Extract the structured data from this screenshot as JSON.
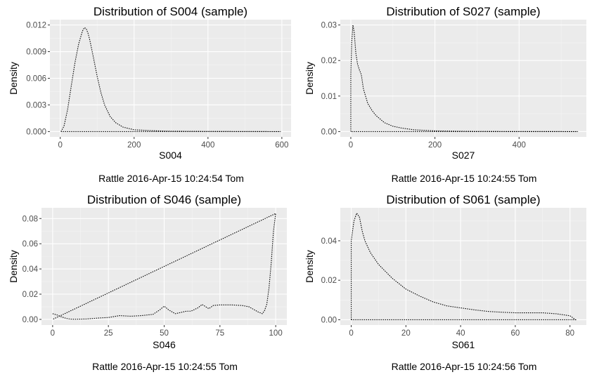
{
  "colors": {
    "panel_background": "#ebebeb",
    "grid_major": "#ffffff",
    "grid_minor": "#f5f5f5",
    "density_line": "#000000",
    "tick_text": "#4d4d4d"
  },
  "chart_data": [
    {
      "type": "line",
      "line_style": "dotted",
      "title": "Distribution of S004 (sample)",
      "xlabel": "S004",
      "ylabel": "Density",
      "caption": "Rattle 2016-Apr-15 10:24:54 Tom",
      "xlim": [
        -28,
        625
      ],
      "ylim": [
        -0.0006,
        0.0126
      ],
      "x_ticks": [
        0,
        200,
        400,
        600
      ],
      "x_tick_labels": [
        "0",
        "200",
        "400",
        "600"
      ],
      "y_ticks": [
        0,
        0.003,
        0.006,
        0.009,
        0.012
      ],
      "y_tick_labels": [
        "0.000",
        "0.003",
        "0.006",
        "0.009",
        "0.012"
      ],
      "x": [
        2,
        10,
        20,
        30,
        40,
        50,
        60,
        65,
        70,
        75,
        80,
        90,
        100,
        110,
        120,
        135,
        150,
        170,
        200,
        250,
        300,
        400,
        500,
        597
      ],
      "y": [
        0,
        0.0006,
        0.0025,
        0.0052,
        0.0078,
        0.0099,
        0.0113,
        0.0117,
        0.0116,
        0.0111,
        0.0103,
        0.0083,
        0.0062,
        0.0044,
        0.003,
        0.0017,
        0.001,
        0.0005,
        0.0002,
        0.0001,
        4e-05,
        2e-05,
        1e-05,
        0
      ]
    },
    {
      "type": "line",
      "line_style": "dotted",
      "title": "Distribution of S027 (sample)",
      "xlabel": "S027",
      "ylabel": "Density",
      "caption": "Rattle 2016-Apr-15 10:24:55 Tom",
      "xlim": [
        -25,
        560
      ],
      "ylim": [
        -0.0015,
        0.0315
      ],
      "x_ticks": [
        0,
        200,
        400
      ],
      "x_tick_labels": [
        "0",
        "200",
        "400"
      ],
      "y_ticks": [
        0,
        0.01,
        0.02,
        0.03
      ],
      "y_tick_labels": [
        "0.00",
        "0.01",
        "0.02",
        "0.03"
      ],
      "x": [
        0,
        0,
        2,
        5,
        8,
        12,
        16,
        20,
        25,
        30,
        40,
        50,
        60,
        70,
        80,
        100,
        120,
        150,
        200,
        250,
        300,
        400,
        500,
        540
      ],
      "y": [
        0,
        0.016,
        0.025,
        0.03,
        0.028,
        0.022,
        0.019,
        0.0175,
        0.016,
        0.012,
        0.008,
        0.006,
        0.0045,
        0.0035,
        0.0025,
        0.0015,
        0.001,
        0.0005,
        0.0002,
        0.0001,
        5e-05,
        2e-05,
        1e-05,
        0
      ]
    },
    {
      "type": "line",
      "line_style": "dotted",
      "title": "Distribution of S046 (sample)",
      "xlabel": "S046",
      "ylabel": "Density",
      "caption": "Rattle 2016-Apr-15 10:24:55 Tom",
      "xlim": [
        -5,
        105
      ],
      "ylim": [
        -0.0045,
        0.0885
      ],
      "x_ticks": [
        0,
        25,
        50,
        75,
        100
      ],
      "x_tick_labels": [
        "0",
        "25",
        "50",
        "75",
        "100"
      ],
      "y_ticks": [
        0,
        0.02,
        0.04,
        0.06,
        0.08
      ],
      "y_tick_labels": [
        "0.00",
        "0.02",
        "0.04",
        "0.06",
        "0.08"
      ],
      "x": [
        0,
        2,
        4,
        6,
        8,
        10,
        15,
        20,
        25,
        30,
        35,
        40,
        45,
        48,
        50,
        52,
        55,
        60,
        62,
        65,
        67,
        70,
        72,
        75,
        80,
        85,
        88,
        90,
        92,
        94,
        95,
        96,
        97,
        98,
        99,
        100
      ],
      "y": [
        0.0045,
        0.0035,
        0.002,
        0.0008,
        0.0002,
        0.0001,
        0.0003,
        0.001,
        0.0015,
        0.003,
        0.0025,
        0.003,
        0.004,
        0.0075,
        0.0105,
        0.0075,
        0.0045,
        0.0065,
        0.0065,
        0.009,
        0.0118,
        0.0085,
        0.011,
        0.0115,
        0.0115,
        0.011,
        0.01,
        0.008,
        0.006,
        0.0045,
        0.007,
        0.012,
        0.025,
        0.045,
        0.07,
        0.084
      ]
    },
    {
      "type": "line",
      "line_style": "dotted",
      "title": "Distribution of S061 (sample)",
      "xlabel": "S061",
      "ylabel": "Density",
      "caption": "Rattle 2016-Apr-15 10:24:56 Tom",
      "xlim": [
        -4,
        86
      ],
      "ylim": [
        -0.0027,
        0.0567
      ],
      "x_ticks": [
        0,
        20,
        40,
        60,
        80
      ],
      "x_tick_labels": [
        "0",
        "20",
        "40",
        "60",
        "80"
      ],
      "y_ticks": [
        0,
        0.02,
        0.04
      ],
      "y_tick_labels": [
        "0.00",
        "0.02",
        "0.04"
      ],
      "x": [
        0,
        0,
        1,
        2,
        3,
        4,
        5,
        7,
        10,
        15,
        20,
        25,
        30,
        35,
        40,
        45,
        50,
        55,
        60,
        65,
        70,
        75,
        80,
        82
      ],
      "y": [
        0,
        0.04,
        0.05,
        0.054,
        0.052,
        0.045,
        0.04,
        0.034,
        0.028,
        0.021,
        0.0155,
        0.012,
        0.009,
        0.007,
        0.006,
        0.005,
        0.0042,
        0.0038,
        0.0035,
        0.0035,
        0.0035,
        0.003,
        0.002,
        0
      ]
    }
  ]
}
